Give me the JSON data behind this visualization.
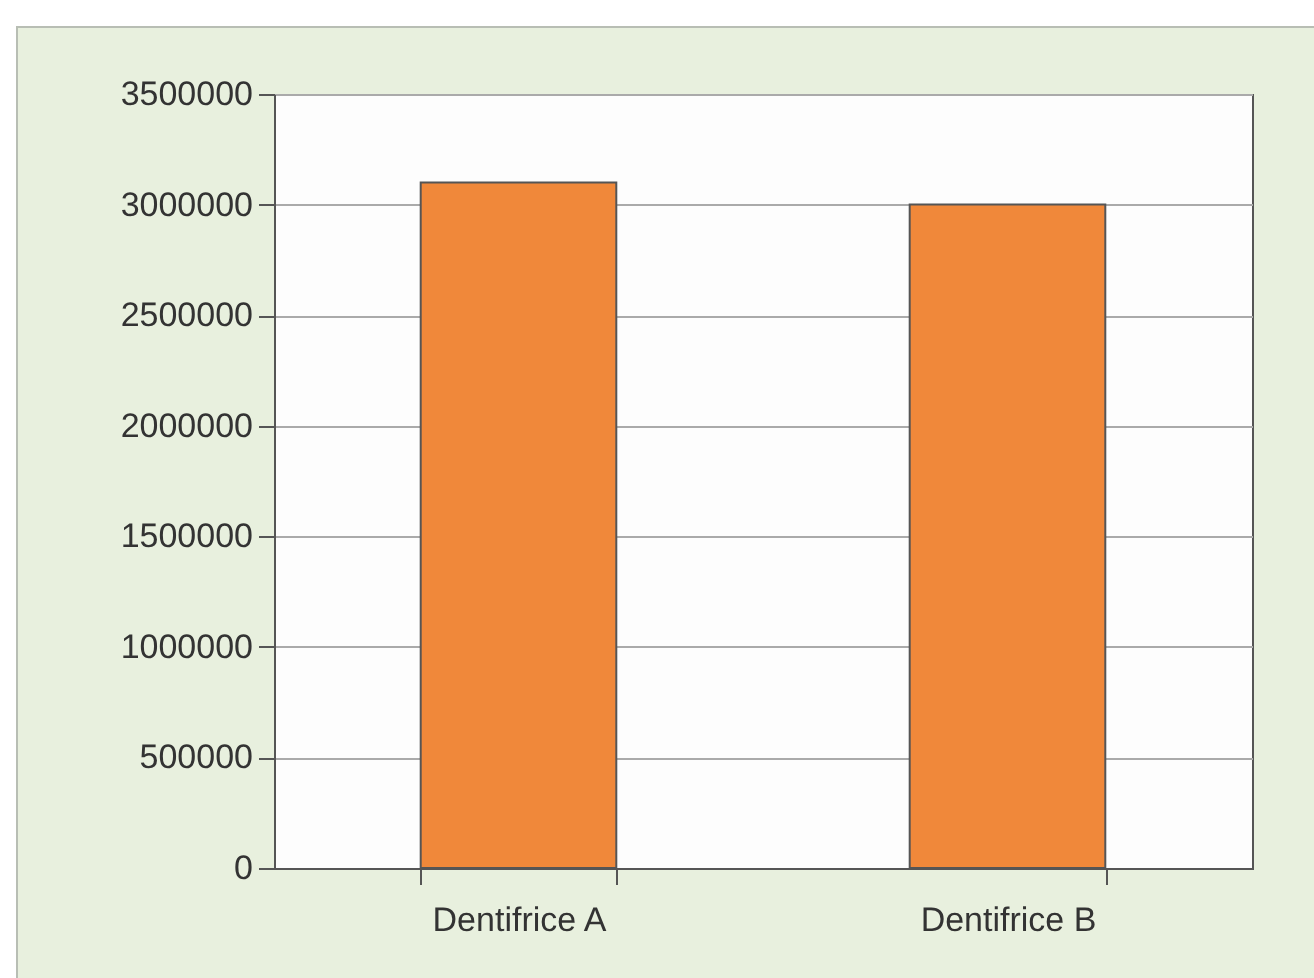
{
  "chart_data": {
    "type": "bar",
    "categories": [
      "Dentifrice A",
      "Dentifrice B"
    ],
    "values": [
      3100000,
      3000000
    ],
    "color": "#f0883a",
    "ylim": [
      0,
      3500000
    ],
    "yticks": [
      0,
      500000,
      1000000,
      1500000,
      2000000,
      2500000,
      3000000,
      3500000
    ],
    "grid": "y"
  }
}
